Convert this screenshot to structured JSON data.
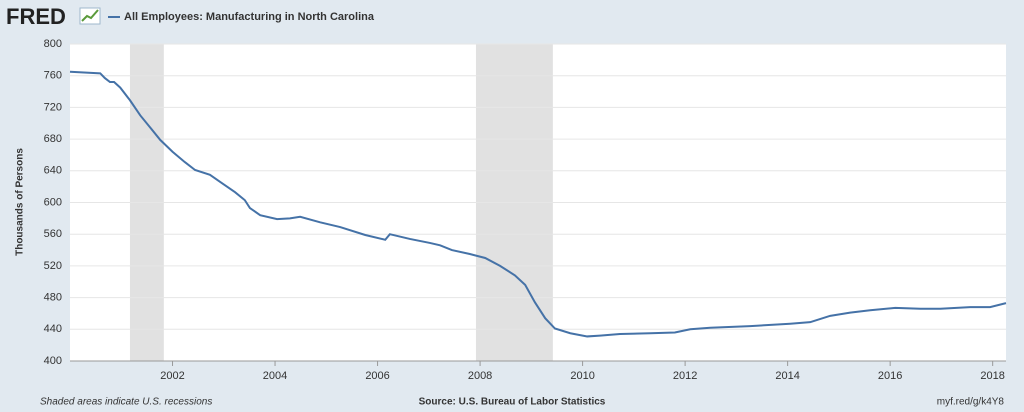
{
  "chart_data": {
    "type": "line",
    "logo": "FRED",
    "title": "All Employees: Manufacturing in North Carolina",
    "ylabel": "Thousands of Persons",
    "note": "Shaded areas indicate U.S. recessions",
    "source": "Source: U.S. Bureau of Labor Statistics",
    "link": "myf.red/g/k4Y8",
    "x": [
      2000.0,
      2000.59,
      2000.68,
      2000.78,
      2000.86,
      2000.98,
      2001.17,
      2001.37,
      2001.56,
      2001.76,
      2002.0,
      2002.24,
      2002.44,
      2002.73,
      2002.93,
      2003.22,
      2003.41,
      2003.51,
      2003.71,
      2004.04,
      2004.29,
      2004.49,
      2004.88,
      2005.27,
      2005.76,
      2006.15,
      2006.24,
      2006.63,
      2007.02,
      2007.22,
      2007.45,
      2007.8,
      2008.1,
      2008.39,
      2008.68,
      2008.88,
      2009.07,
      2009.27,
      2009.46,
      2009.76,
      2010.09,
      2010.34,
      2010.73,
      2011.32,
      2011.8,
      2012.1,
      2012.49,
      2013.27,
      2014.05,
      2014.44,
      2014.83,
      2015.22,
      2015.61,
      2016.1,
      2016.59,
      2016.98,
      2017.56,
      2017.95,
      2018.26
    ],
    "series": [
      {
        "name": "All Employees: Manufacturing in North Carolina",
        "color": "#4572a7",
        "values": [
          765,
          763,
          757,
          752,
          752,
          745,
          729,
          710,
          695,
          679,
          664,
          651,
          641,
          635,
          626,
          613,
          603,
          593,
          584,
          579,
          580,
          582,
          575,
          569,
          559,
          553,
          560,
          554,
          549,
          546,
          540,
          535,
          530,
          520,
          508,
          496,
          474,
          454,
          441,
          435,
          431,
          432,
          434,
          435,
          436,
          440,
          442,
          444,
          447,
          449,
          457,
          461,
          464,
          467,
          466,
          466,
          468,
          468,
          473
        ]
      }
    ],
    "recessions": [
      [
        2001.17,
        2001.83
      ],
      [
        2007.92,
        2009.42
      ]
    ],
    "xlim": [
      2000.0,
      2018.26
    ],
    "xticks": [
      2002,
      2004,
      2006,
      2008,
      2010,
      2012,
      2014,
      2016,
      2018
    ],
    "ylim": [
      400,
      800
    ],
    "yticks": [
      400,
      440,
      480,
      520,
      560,
      600,
      640,
      680,
      720,
      760,
      800
    ],
    "grid": true
  }
}
